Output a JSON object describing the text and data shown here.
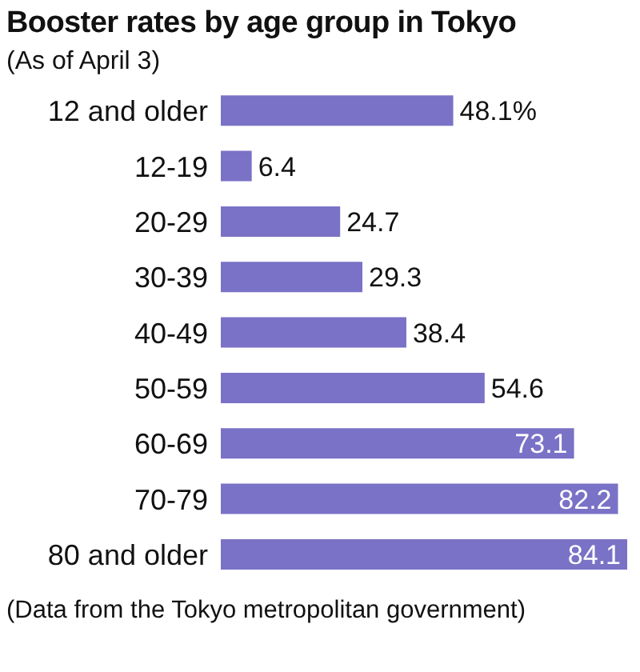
{
  "chart_data": {
    "type": "bar",
    "orientation": "horizontal",
    "title": "Booster rates by age group in Tokyo",
    "subtitle": "(As of April 3)",
    "categories": [
      "12 and older",
      "12-19",
      "20-29",
      "30-39",
      "40-49",
      "50-59",
      "60-69",
      "70-79",
      "80 and older"
    ],
    "values": [
      48.1,
      6.4,
      24.7,
      29.3,
      38.4,
      54.6,
      73.1,
      82.2,
      84.1
    ],
    "value_labels": [
      "48.1%",
      "6.4",
      "24.7",
      "29.3",
      "38.4",
      "54.6",
      "73.1",
      "82.2",
      "84.1"
    ],
    "color": "#7a72c6",
    "annotations": [
      "(Data from the Tokyo metropolitan government)"
    ]
  }
}
